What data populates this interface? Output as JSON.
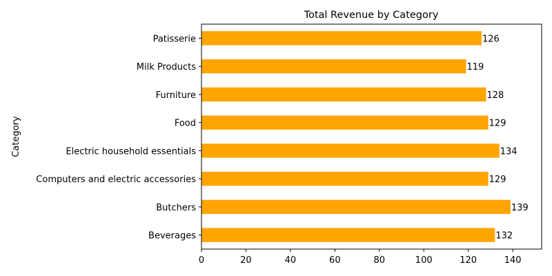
{
  "chart_data": {
    "type": "bar",
    "orientation": "horizontal",
    "title": "Total Revenue by Category",
    "xlabel": "",
    "ylabel": "Category",
    "categories": [
      "Beverages",
      "Butchers",
      "Computers and electric accessories",
      "Electric household essentials",
      "Food",
      "Furniture",
      "Milk Products",
      "Patisserie"
    ],
    "values": [
      132,
      139,
      129,
      134,
      129,
      128,
      119,
      126
    ],
    "value_labels": [
      "132",
      "139",
      "129",
      "134",
      "129",
      "128",
      "119",
      "126"
    ],
    "xlim": [
      0,
      153
    ],
    "xticks": [
      0,
      20,
      40,
      60,
      80,
      100,
      120,
      140
    ],
    "xtick_labels": [
      "0",
      "20",
      "40",
      "60",
      "80",
      "100",
      "120",
      "140"
    ],
    "bar_color": "#ffa500",
    "grid": false,
    "legend": "none"
  }
}
